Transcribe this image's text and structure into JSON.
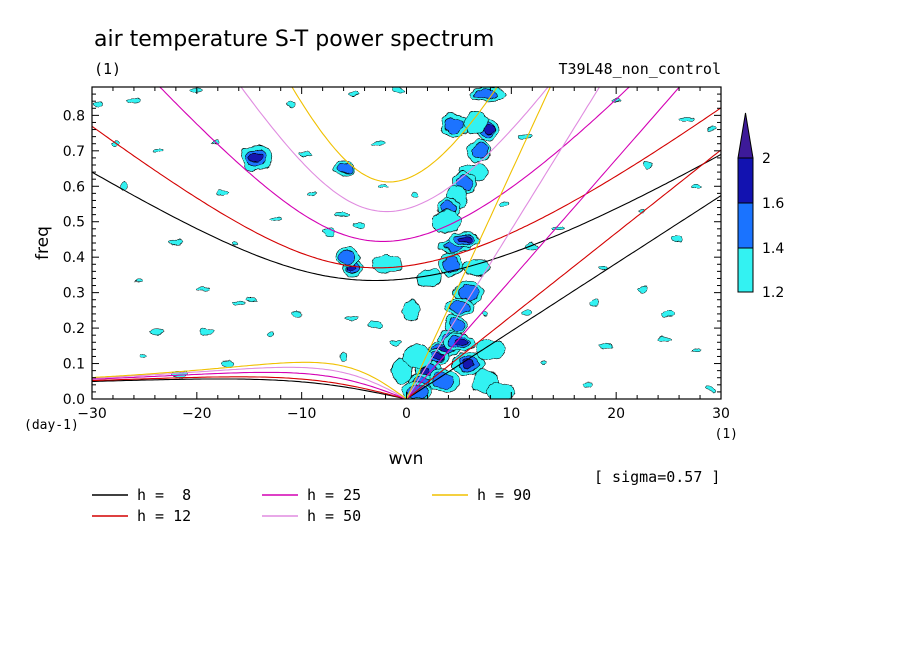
{
  "chart_data": {
    "type": "heatmap",
    "title": "air temperature S-T power spectrum",
    "subtitle_left": "(1)",
    "subtitle_right": "T39L48_non_control",
    "xlabel": "wvn",
    "ylabel": "freq",
    "x_unit": "(1)",
    "y_unit": "(day-1)",
    "xlim": [
      -30,
      30
    ],
    "ylim": [
      0,
      0.88
    ],
    "x_ticks": [
      -30,
      -20,
      -10,
      0,
      10,
      20,
      30
    ],
    "x_tick_labels": [
      "-30",
      "-20",
      "-10",
      "0",
      "10",
      "20",
      "30"
    ],
    "y_ticks": [
      0.0,
      0.1,
      0.2,
      0.3,
      0.4,
      0.5,
      0.6,
      0.7,
      0.8
    ],
    "y_tick_labels": [
      "0.0",
      "0.1",
      "0.2",
      "0.3",
      "0.4",
      "0.5",
      "0.6",
      "0.7",
      "0.8"
    ],
    "sigma_note": "[ sigma=0.57 ]",
    "colorbar": {
      "levels": [
        1.2,
        1.4,
        1.6,
        2
      ],
      "level_labels": [
        "1.2",
        "1.4",
        "1.6",
        "2"
      ],
      "colors": [
        "#33f2f2",
        "#1a73ff",
        "#1212b0",
        "#3d1a99"
      ]
    },
    "dispersion_curves": [
      {
        "label": "h =  8",
        "h": 8,
        "color": "#000000"
      },
      {
        "label": "h = 12",
        "h": 12,
        "color": "#d40000"
      },
      {
        "label": "h = 25",
        "h": 25,
        "color": "#d400b4"
      },
      {
        "label": "h = 50",
        "h": 50,
        "color": "#e08ce0"
      },
      {
        "label": "h = 90",
        "h": 90,
        "color": "#f0c000"
      }
    ],
    "blobs": [
      {
        "k": 4.6,
        "f": 0.77,
        "lvl": 2
      },
      {
        "k": 7.7,
        "f": 0.76,
        "lvl": 3
      },
      {
        "k": 6.9,
        "f": 0.7,
        "lvl": 2
      },
      {
        "k": 6.4,
        "f": 0.64,
        "lvl": 1
      },
      {
        "k": 5.5,
        "f": 0.61,
        "lvl": 2
      },
      {
        "k": 4.8,
        "f": 0.57,
        "lvl": 1
      },
      {
        "k": 4.0,
        "f": 0.54,
        "lvl": 2
      },
      {
        "k": 3.8,
        "f": 0.5,
        "lvl": 1
      },
      {
        "k": 4.6,
        "f": 0.43,
        "lvl": 2
      },
      {
        "k": 5.5,
        "f": 0.45,
        "lvl": 3
      },
      {
        "k": 4.2,
        "f": 0.38,
        "lvl": 2
      },
      {
        "k": 6.6,
        "f": 0.37,
        "lvl": 1
      },
      {
        "k": 6.0,
        "f": 0.3,
        "lvl": 2
      },
      {
        "k": 5.1,
        "f": 0.26,
        "lvl": 2
      },
      {
        "k": 4.7,
        "f": 0.21,
        "lvl": 2
      },
      {
        "k": 4.0,
        "f": 0.17,
        "lvl": 2
      },
      {
        "k": 3.6,
        "f": 0.14,
        "lvl": 3
      },
      {
        "k": 5.0,
        "f": 0.16,
        "lvl": 3
      },
      {
        "k": 2.8,
        "f": 0.12,
        "lvl": 3
      },
      {
        "k": 2.0,
        "f": 0.08,
        "lvl": 3
      },
      {
        "k": 1.5,
        "f": 0.045,
        "lvl": 2
      },
      {
        "k": 3.6,
        "f": 0.05,
        "lvl": 2
      },
      {
        "k": 5.9,
        "f": 0.1,
        "lvl": 3
      },
      {
        "k": 0.9,
        "f": 0.02,
        "lvl": 2
      },
      {
        "k": -5.1,
        "f": 0.37,
        "lvl": 3
      },
      {
        "k": -5.6,
        "f": 0.4,
        "lvl": 2
      },
      {
        "k": -6.0,
        "f": 0.65,
        "lvl": 2
      },
      {
        "k": -14.3,
        "f": 0.68,
        "lvl": 3
      },
      {
        "k": 7.8,
        "f": 0.86,
        "lvl": 2
      },
      {
        "k": 6.6,
        "f": 0.78,
        "lvl": 1
      },
      {
        "k": -1.8,
        "f": 0.38,
        "lvl": 1
      },
      {
        "k": 2.1,
        "f": 0.34,
        "lvl": 1
      },
      {
        "k": -0.4,
        "f": 0.08,
        "lvl": 1
      },
      {
        "k": 0.4,
        "f": 0.25,
        "lvl": 1
      },
      {
        "k": 1.0,
        "f": 0.12,
        "lvl": 1
      },
      {
        "k": 7.5,
        "f": 0.05,
        "lvl": 1
      },
      {
        "k": 9.0,
        "f": 0.02,
        "lvl": 1
      },
      {
        "k": 8.0,
        "f": 0.14,
        "lvl": 1
      }
    ],
    "specks": [
      [
        -29.5,
        0.83
      ],
      [
        -26.0,
        0.84
      ],
      [
        -20.0,
        0.87
      ],
      [
        -11.0,
        0.83
      ],
      [
        -5.0,
        0.86
      ],
      [
        -27.8,
        0.72
      ],
      [
        -23.7,
        0.7
      ],
      [
        -18.3,
        0.72
      ],
      [
        -2.7,
        0.72
      ],
      [
        -17.6,
        0.58
      ],
      [
        -9.0,
        0.58
      ],
      [
        -6.2,
        0.52
      ],
      [
        -4.5,
        0.49
      ],
      [
        -22.0,
        0.44
      ],
      [
        -16.3,
        0.44
      ],
      [
        -25.5,
        0.33
      ],
      [
        -19.5,
        0.31
      ],
      [
        -16.0,
        0.27
      ],
      [
        -10.5,
        0.24
      ],
      [
        -23.8,
        0.19
      ],
      [
        -19.0,
        0.19
      ],
      [
        -13.0,
        0.18
      ],
      [
        -6.0,
        0.12
      ],
      [
        -25.2,
        0.12
      ],
      [
        -17.0,
        0.1
      ],
      [
        -5.3,
        0.23
      ],
      [
        -3.0,
        0.21
      ],
      [
        -1.0,
        0.16
      ],
      [
        20.0,
        0.84
      ],
      [
        26.6,
        0.79
      ],
      [
        29.2,
        0.76
      ],
      [
        23.0,
        0.66
      ],
      [
        22.4,
        0.53
      ],
      [
        27.6,
        0.6
      ],
      [
        18.8,
        0.37
      ],
      [
        12.0,
        0.43
      ],
      [
        18.0,
        0.27
      ],
      [
        22.5,
        0.31
      ],
      [
        25.0,
        0.24
      ],
      [
        11.5,
        0.24
      ],
      [
        7.5,
        0.24
      ],
      [
        24.6,
        0.17
      ],
      [
        13.1,
        0.1
      ],
      [
        27.6,
        0.14
      ],
      [
        17.3,
        0.04
      ],
      [
        29.0,
        0.03
      ],
      [
        19.0,
        0.15
      ],
      [
        -7.4,
        0.47
      ],
      [
        -12.5,
        0.51
      ],
      [
        -0.8,
        0.87
      ],
      [
        11.3,
        0.74
      ],
      [
        9.3,
        0.55
      ],
      [
        -14.8,
        0.28
      ],
      [
        -27.0,
        0.6
      ],
      [
        -21.8,
        0.07
      ],
      [
        0.8,
        0.58
      ],
      [
        14.5,
        0.48
      ],
      [
        25.7,
        0.45
      ],
      [
        -9.6,
        0.69
      ],
      [
        -2.2,
        0.6
      ]
    ]
  }
}
